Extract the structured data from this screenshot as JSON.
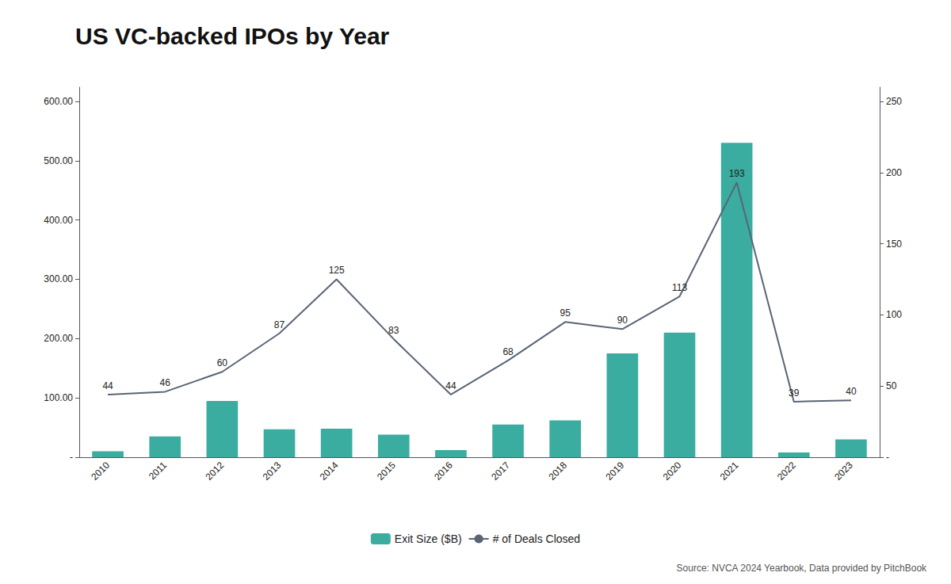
{
  "chart_data": {
    "type": "bar",
    "title": "US VC-backed IPOs by Year",
    "categories": [
      "2010",
      "2011",
      "2012",
      "2013",
      "2014",
      "2015",
      "2016",
      "2017",
      "2018",
      "2019",
      "2020",
      "2021",
      "2022",
      "2023"
    ],
    "series": [
      {
        "name": "Exit Size ($B)",
        "type": "bar",
        "color": "#3aada0",
        "values": [
          10,
          35,
          95,
          47,
          48,
          38,
          12,
          55,
          62,
          175,
          210,
          530,
          8,
          30
        ]
      },
      {
        "name": "# of Deals Closed",
        "type": "line",
        "color": "#5a6475",
        "axis": "y2",
        "data_labels": true,
        "values": [
          44,
          46,
          60,
          87,
          125,
          83,
          44,
          68,
          95,
          90,
          113,
          193,
          39,
          40
        ]
      }
    ],
    "ylim": [
      0,
      624
    ],
    "yticks": [
      {
        "value": 0,
        "label": "-"
      },
      {
        "value": 100,
        "label": "100.00"
      },
      {
        "value": 200,
        "label": "200.00"
      },
      {
        "value": 300,
        "label": "300.00"
      },
      {
        "value": 400,
        "label": "400.00"
      },
      {
        "value": 500,
        "label": "500.00"
      },
      {
        "value": 600,
        "label": "600.00"
      }
    ],
    "y2lim": [
      0,
      260
    ],
    "y2ticks": [
      {
        "value": 0,
        "label": "-"
      },
      50,
      100,
      150,
      200,
      250
    ],
    "grid": false,
    "legend": "bottom",
    "annotations": [
      "Source: NVCA 2024 Yearbook, Data provided by PitchBook"
    ]
  }
}
